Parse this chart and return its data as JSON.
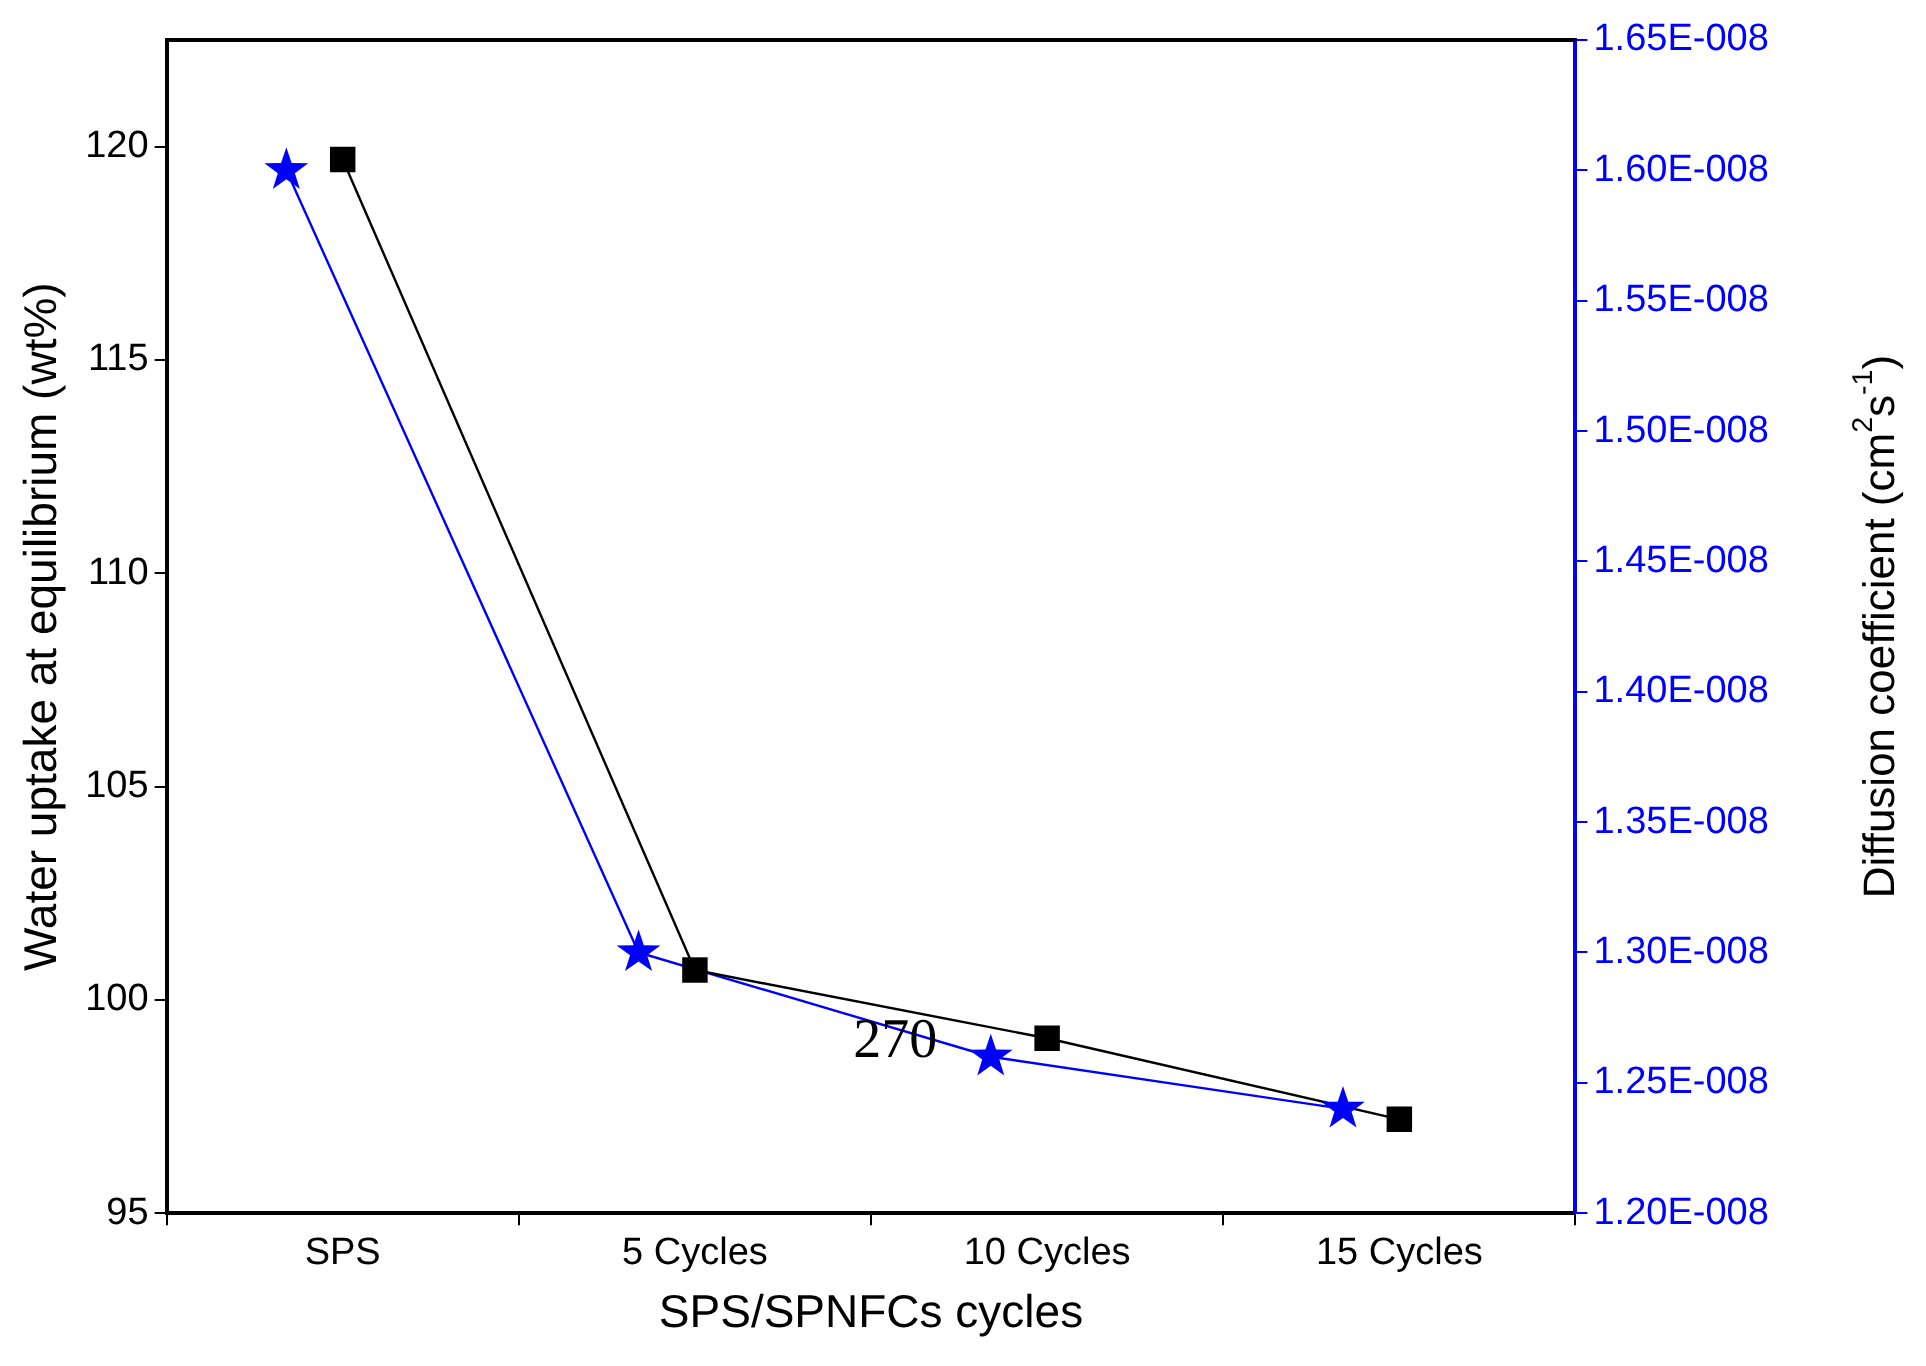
{
  "chart_data": {
    "type": "line",
    "xlabel": "SPS/SPNFCs cycles",
    "ylabel": "Water uptake at equilibrium (wt%)",
    "y2label": "Diffusion coefficient (cm$^{2}$s$^{-1}$)",
    "categories": [
      "SPS",
      "5 Cycles",
      "10 Cycles",
      "15 Cycles"
    ],
    "series": [
      {
        "color": "#000000",
        "marker": "square",
        "values": [
          119.7,
          100.7,
          99.1,
          97.2
        ]
      },
      {
        "color": "#0000ff",
        "marker": "star",
        "axis": "y2",
        "values": [
          1.6e-08,
          1.3e-08,
          1.26e-08,
          1.24e-08
        ]
      }
    ],
    "ylim": [
      95,
      122.5
    ],
    "yticks": [
      95,
      100,
      105,
      110,
      115,
      120
    ],
    "y2lim": [
      1.2e-08,
      1.65e-08
    ],
    "y2ticks": [
      {
        "value": 1.2e-08,
        "label": "1.20E-008"
      },
      {
        "value": 1.25e-08,
        "label": "1.25E-008"
      },
      {
        "value": 1.3e-08,
        "label": "1.30E-008"
      },
      {
        "value": 1.35e-08,
        "label": "1.35E-008"
      },
      {
        "value": 1.4e-08,
        "label": "1.40E-008"
      },
      {
        "value": 1.45e-08,
        "label": "1.45E-008"
      },
      {
        "value": 1.5e-08,
        "label": "1.50E-008"
      },
      {
        "value": 1.55e-08,
        "label": "1.55E-008"
      },
      {
        "value": 1.6e-08,
        "label": "1.60E-008"
      },
      {
        "value": 1.65e-08,
        "label": "1.65E-008"
      }
    ],
    "annotations": [
      {
        "text": "270",
        "x": "10 Cycles",
        "y": 99.0
      }
    ],
    "grid": false,
    "legend": false,
    "line_style": "solid"
  }
}
